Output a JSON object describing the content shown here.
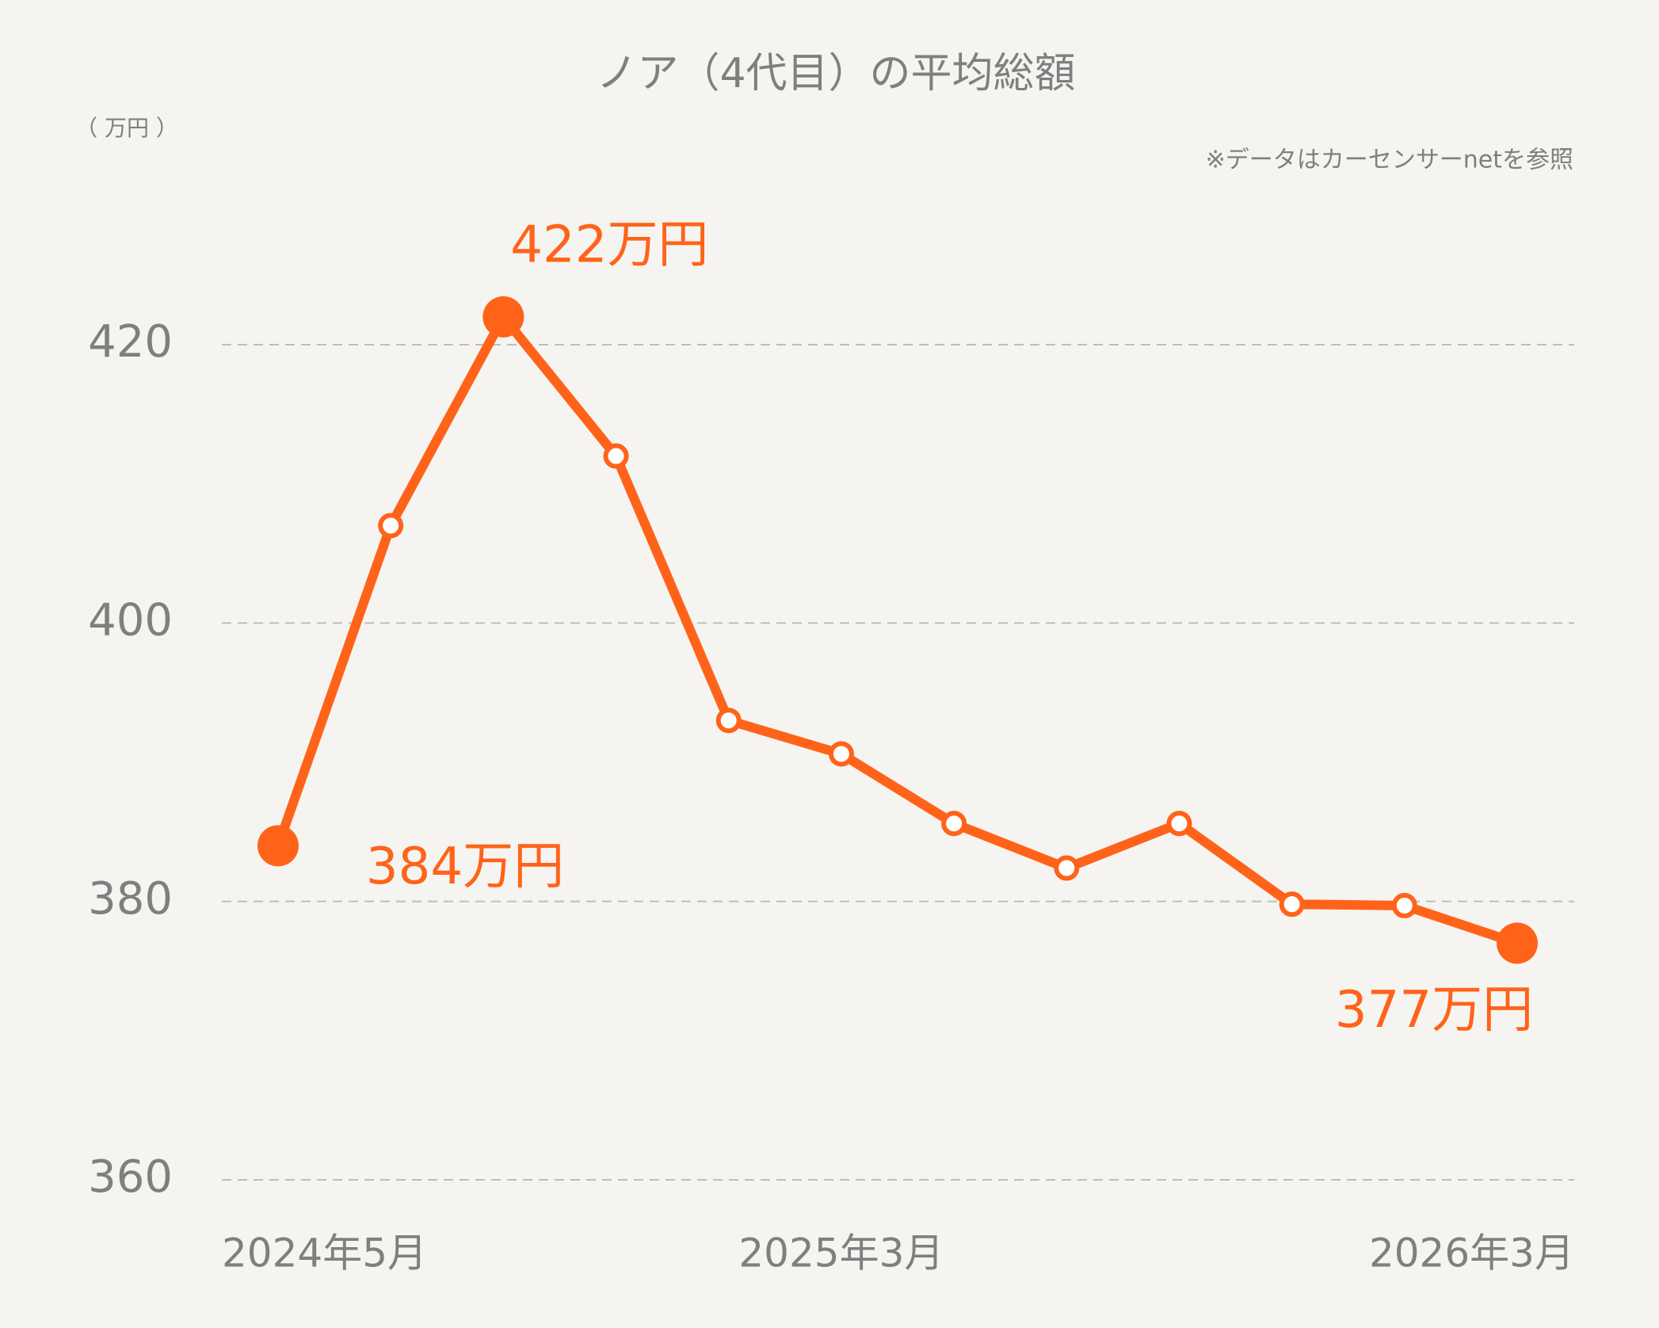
{
  "chart_data": {
    "type": "line",
    "title": "ノア（4代目）の平均総額",
    "y_unit": "（ 万円 ）",
    "note": "※データはカーセンサーnetを参照",
    "categories": [
      "2024年5月",
      null,
      null,
      null,
      null,
      "2025年3月",
      null,
      null,
      null,
      null,
      null,
      "2026年3月"
    ],
    "series": [
      {
        "name": "平均総額",
        "color": "#ff6319",
        "values": [
          384,
          407,
          422,
          412,
          393,
          390.6,
          385.6,
          382.4,
          385.6,
          379.8,
          379.7,
          377
        ],
        "value_labels": [
          "384万円",
          null,
          "422万円",
          null,
          null,
          null,
          null,
          null,
          null,
          null,
          null,
          "377万円"
        ]
      }
    ],
    "ylim": [
      360,
      420
    ],
    "yticks": [
      360,
      380,
      400,
      420
    ],
    "grid": true
  }
}
